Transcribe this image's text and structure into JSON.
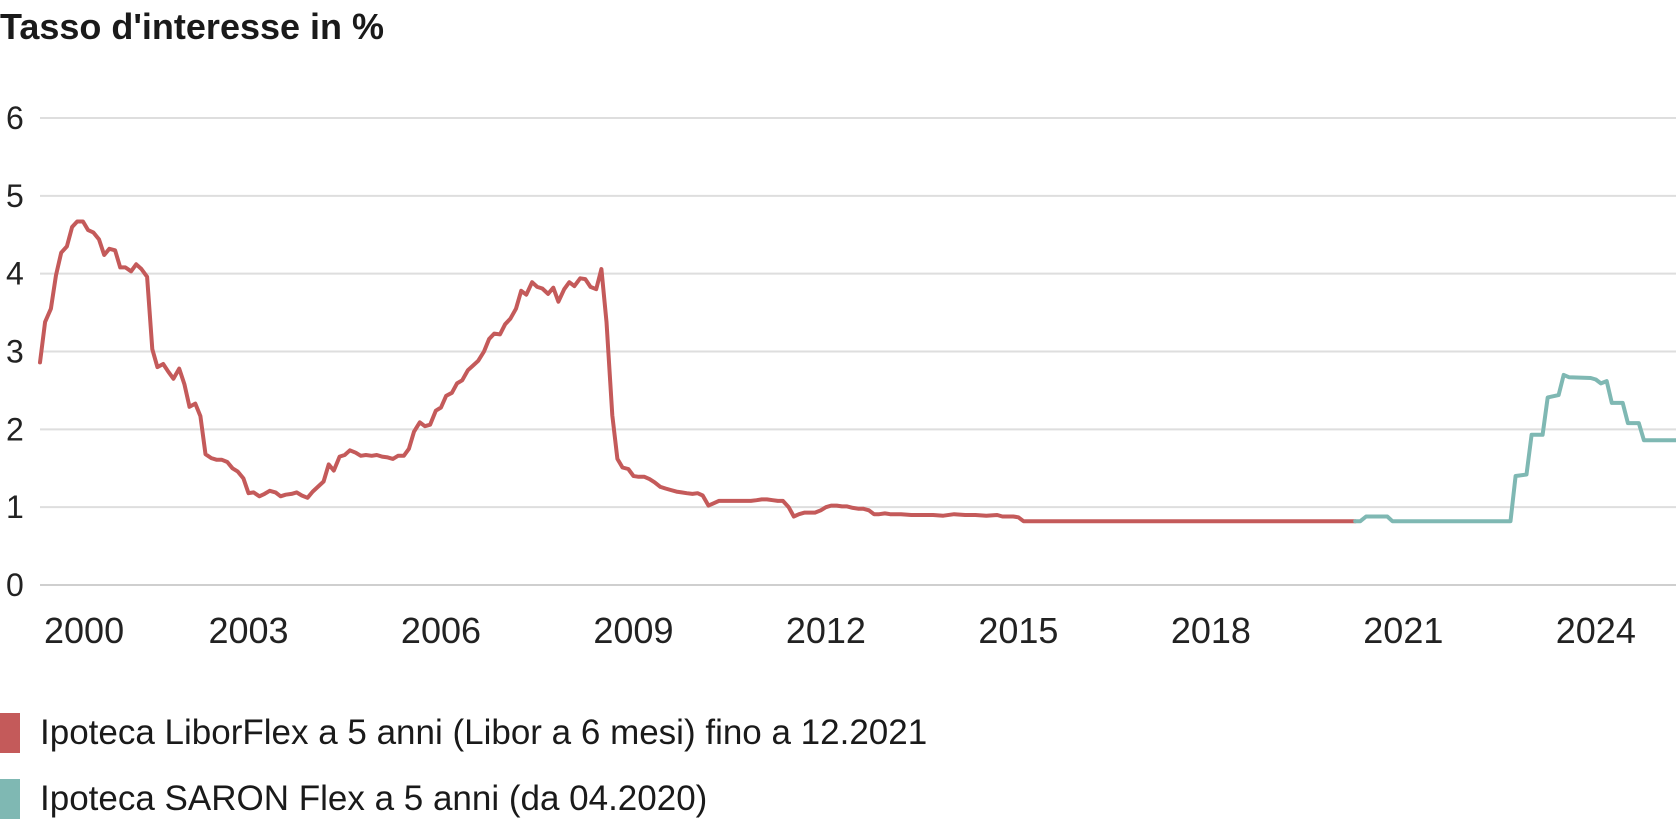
{
  "chart_data": {
    "type": "line",
    "title": "Tasso d'interesse in %",
    "xlabel": "",
    "ylabel": "",
    "xlim": [
      1999.75,
      2025.25
    ],
    "ylim": [
      0,
      6
    ],
    "x_ticks": [
      "2000",
      "2003",
      "2006",
      "2009",
      "2012",
      "2015",
      "2018",
      "2021",
      "2024"
    ],
    "y_ticks": [
      "0",
      "1",
      "2",
      "3",
      "4",
      "5",
      "6"
    ],
    "grid": true,
    "legend_position": "bottom-left",
    "series": [
      {
        "name": "Ipoteca LiborFlex a 5 anni (Libor a 6 mesi) fino a 12.2021",
        "color": "#c45a5a",
        "points": [
          [
            1999.75,
            2.86
          ],
          [
            1999.83,
            3.38
          ],
          [
            1999.92,
            3.55
          ],
          [
            2000.0,
            3.98
          ],
          [
            2000.08,
            4.27
          ],
          [
            2000.17,
            4.35
          ],
          [
            2000.25,
            4.6
          ],
          [
            2000.33,
            4.67
          ],
          [
            2000.42,
            4.67
          ],
          [
            2000.5,
            4.56
          ],
          [
            2000.58,
            4.53
          ],
          [
            2000.67,
            4.44
          ],
          [
            2000.75,
            4.24
          ],
          [
            2000.83,
            4.32
          ],
          [
            2000.92,
            4.3
          ],
          [
            2001.0,
            4.08
          ],
          [
            2001.08,
            4.08
          ],
          [
            2001.17,
            4.03
          ],
          [
            2001.25,
            4.12
          ],
          [
            2001.33,
            4.06
          ],
          [
            2001.42,
            3.96
          ],
          [
            2001.5,
            3.03
          ],
          [
            2001.58,
            2.8
          ],
          [
            2001.67,
            2.84
          ],
          [
            2001.75,
            2.74
          ],
          [
            2001.83,
            2.65
          ],
          [
            2001.92,
            2.78
          ],
          [
            2002.0,
            2.58
          ],
          [
            2002.08,
            2.29
          ],
          [
            2002.17,
            2.33
          ],
          [
            2002.25,
            2.17
          ],
          [
            2002.33,
            1.68
          ],
          [
            2002.42,
            1.63
          ],
          [
            2002.5,
            1.61
          ],
          [
            2002.58,
            1.61
          ],
          [
            2002.67,
            1.58
          ],
          [
            2002.75,
            1.5
          ],
          [
            2002.83,
            1.46
          ],
          [
            2002.92,
            1.37
          ],
          [
            2003.0,
            1.18
          ],
          [
            2003.08,
            1.19
          ],
          [
            2003.17,
            1.14
          ],
          [
            2003.25,
            1.17
          ],
          [
            2003.33,
            1.21
          ],
          [
            2003.42,
            1.19
          ],
          [
            2003.5,
            1.14
          ],
          [
            2003.58,
            1.16
          ],
          [
            2003.67,
            1.17
          ],
          [
            2003.75,
            1.19
          ],
          [
            2003.83,
            1.15
          ],
          [
            2003.92,
            1.12
          ],
          [
            2004.0,
            1.2
          ],
          [
            2004.08,
            1.26
          ],
          [
            2004.17,
            1.33
          ],
          [
            2004.25,
            1.55
          ],
          [
            2004.33,
            1.47
          ],
          [
            2004.42,
            1.65
          ],
          [
            2004.5,
            1.67
          ],
          [
            2004.58,
            1.73
          ],
          [
            2004.67,
            1.7
          ],
          [
            2004.75,
            1.66
          ],
          [
            2004.83,
            1.67
          ],
          [
            2004.92,
            1.66
          ],
          [
            2005.0,
            1.67
          ],
          [
            2005.08,
            1.65
          ],
          [
            2005.17,
            1.64
          ],
          [
            2005.25,
            1.62
          ],
          [
            2005.33,
            1.66
          ],
          [
            2005.42,
            1.66
          ],
          [
            2005.5,
            1.75
          ],
          [
            2005.58,
            1.97
          ],
          [
            2005.67,
            2.09
          ],
          [
            2005.75,
            2.04
          ],
          [
            2005.83,
            2.06
          ],
          [
            2005.92,
            2.24
          ],
          [
            2006.0,
            2.28
          ],
          [
            2006.08,
            2.43
          ],
          [
            2006.17,
            2.47
          ],
          [
            2006.25,
            2.59
          ],
          [
            2006.33,
            2.63
          ],
          [
            2006.42,
            2.76
          ],
          [
            2006.5,
            2.82
          ],
          [
            2006.58,
            2.88
          ],
          [
            2006.67,
            3.0
          ],
          [
            2006.75,
            3.16
          ],
          [
            2006.83,
            3.23
          ],
          [
            2006.92,
            3.22
          ],
          [
            2007.0,
            3.35
          ],
          [
            2007.08,
            3.42
          ],
          [
            2007.17,
            3.55
          ],
          [
            2007.25,
            3.78
          ],
          [
            2007.33,
            3.73
          ],
          [
            2007.42,
            3.89
          ],
          [
            2007.5,
            3.83
          ],
          [
            2007.58,
            3.81
          ],
          [
            2007.67,
            3.74
          ],
          [
            2007.75,
            3.82
          ],
          [
            2007.83,
            3.64
          ],
          [
            2007.92,
            3.8
          ],
          [
            2008.0,
            3.89
          ],
          [
            2008.08,
            3.84
          ],
          [
            2008.17,
            3.94
          ],
          [
            2008.25,
            3.93
          ],
          [
            2008.33,
            3.83
          ],
          [
            2008.42,
            3.8
          ],
          [
            2008.5,
            4.06
          ],
          [
            2008.58,
            3.38
          ],
          [
            2008.67,
            2.18
          ],
          [
            2008.75,
            1.62
          ],
          [
            2008.83,
            1.51
          ],
          [
            2008.92,
            1.49
          ],
          [
            2009.0,
            1.4
          ],
          [
            2009.08,
            1.39
          ],
          [
            2009.17,
            1.39
          ],
          [
            2009.25,
            1.36
          ],
          [
            2009.33,
            1.32
          ],
          [
            2009.42,
            1.26
          ],
          [
            2009.5,
            1.24
          ],
          [
            2009.58,
            1.22
          ],
          [
            2009.67,
            1.2
          ],
          [
            2009.75,
            1.19
          ],
          [
            2009.83,
            1.18
          ],
          [
            2009.92,
            1.17
          ],
          [
            2010.0,
            1.18
          ],
          [
            2010.08,
            1.15
          ],
          [
            2010.17,
            1.02
          ],
          [
            2010.25,
            1.05
          ],
          [
            2010.33,
            1.08
          ],
          [
            2010.42,
            1.08
          ],
          [
            2010.5,
            1.08
          ],
          [
            2010.58,
            1.08
          ],
          [
            2010.67,
            1.08
          ],
          [
            2010.75,
            1.08
          ],
          [
            2010.83,
            1.08
          ],
          [
            2010.92,
            1.09
          ],
          [
            2011.0,
            1.1
          ],
          [
            2011.08,
            1.1
          ],
          [
            2011.17,
            1.09
          ],
          [
            2011.25,
            1.08
          ],
          [
            2011.33,
            1.08
          ],
          [
            2011.42,
            1.0
          ],
          [
            2011.5,
            0.88
          ],
          [
            2011.58,
            0.91
          ],
          [
            2011.67,
            0.93
          ],
          [
            2011.75,
            0.93
          ],
          [
            2011.83,
            0.93
          ],
          [
            2011.92,
            0.96
          ],
          [
            2012.0,
            1.0
          ],
          [
            2012.08,
            1.02
          ],
          [
            2012.17,
            1.02
          ],
          [
            2012.25,
            1.01
          ],
          [
            2012.33,
            1.01
          ],
          [
            2012.42,
            0.99
          ],
          [
            2012.5,
            0.98
          ],
          [
            2012.58,
            0.98
          ],
          [
            2012.67,
            0.96
          ],
          [
            2012.75,
            0.91
          ],
          [
            2012.83,
            0.91
          ],
          [
            2012.92,
            0.92
          ],
          [
            2013.0,
            0.91
          ],
          [
            2013.17,
            0.91
          ],
          [
            2013.33,
            0.9
          ],
          [
            2013.5,
            0.9
          ],
          [
            2013.67,
            0.9
          ],
          [
            2013.83,
            0.89
          ],
          [
            2014.0,
            0.91
          ],
          [
            2014.17,
            0.9
          ],
          [
            2014.33,
            0.9
          ],
          [
            2014.5,
            0.89
          ],
          [
            2014.67,
            0.9
          ],
          [
            2014.75,
            0.88
          ],
          [
            2014.92,
            0.88
          ],
          [
            2015.0,
            0.87
          ],
          [
            2015.08,
            0.82
          ],
          [
            2016.0,
            0.82
          ],
          [
            2017.0,
            0.82
          ],
          [
            2018.0,
            0.82
          ],
          [
            2019.0,
            0.82
          ],
          [
            2020.0,
            0.82
          ],
          [
            2020.25,
            0.82
          ]
        ]
      },
      {
        "name": "Ipoteca SARON Flex a 5 anni (da 04.2020)",
        "color": "#7fb8b3",
        "points": [
          [
            2020.25,
            0.82
          ],
          [
            2020.33,
            0.82
          ],
          [
            2020.42,
            0.88
          ],
          [
            2020.5,
            0.88
          ],
          [
            2020.58,
            0.88
          ],
          [
            2020.67,
            0.88
          ],
          [
            2020.75,
            0.88
          ],
          [
            2020.83,
            0.82
          ],
          [
            2021.0,
            0.82
          ],
          [
            2021.5,
            0.82
          ],
          [
            2022.0,
            0.82
          ],
          [
            2022.5,
            0.82
          ],
          [
            2022.67,
            0.82
          ],
          [
            2022.75,
            1.4
          ],
          [
            2022.92,
            1.42
          ],
          [
            2023.0,
            1.93
          ],
          [
            2023.17,
            1.93
          ],
          [
            2023.25,
            2.41
          ],
          [
            2023.42,
            2.44
          ],
          [
            2023.5,
            2.7
          ],
          [
            2023.58,
            2.67
          ],
          [
            2023.92,
            2.66
          ],
          [
            2024.0,
            2.64
          ],
          [
            2024.08,
            2.59
          ],
          [
            2024.17,
            2.62
          ],
          [
            2024.25,
            2.34
          ],
          [
            2024.42,
            2.34
          ],
          [
            2024.5,
            2.08
          ],
          [
            2024.67,
            2.08
          ],
          [
            2024.75,
            1.86
          ],
          [
            2025.25,
            1.86
          ]
        ]
      }
    ]
  }
}
